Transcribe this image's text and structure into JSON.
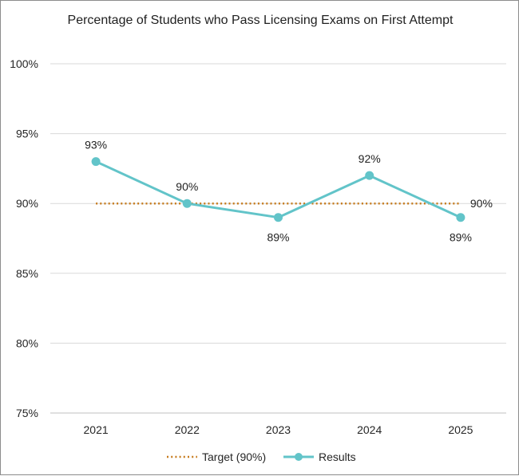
{
  "chart_data": {
    "type": "line",
    "title": "Percentage of Students who Pass Licensing Exams on First Attempt",
    "xlabel": "",
    "ylabel": "",
    "categories": [
      "2021",
      "2022",
      "2023",
      "2024",
      "2025"
    ],
    "ylim": [
      75,
      100
    ],
    "yticks": [
      75,
      80,
      85,
      90,
      95,
      100
    ],
    "ytick_labels": [
      "75%",
      "80%",
      "85%",
      "90%",
      "95%",
      "100%"
    ],
    "grid": true,
    "legend_position": "bottom",
    "series": [
      {
        "name": "Target (90%)",
        "values": [
          90,
          90,
          90,
          90,
          90
        ],
        "style": "dotted",
        "color": "#c77c1e",
        "end_label": "90%"
      },
      {
        "name": "Results",
        "values": [
          93,
          90,
          89,
          92,
          89
        ],
        "style": "solid-markers",
        "color": "#62c4c9",
        "data_labels": [
          "93%",
          "90%",
          "89%",
          "92%",
          "89%"
        ],
        "label_positions": [
          "above",
          "above",
          "below",
          "above",
          "below"
        ]
      }
    ]
  }
}
